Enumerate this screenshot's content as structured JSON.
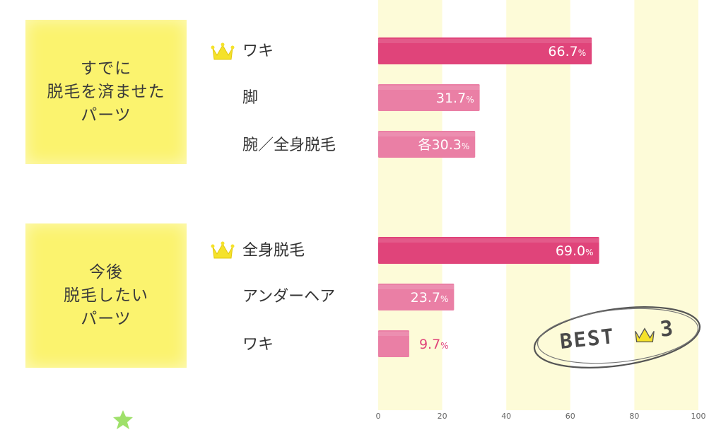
{
  "groups": [
    {
      "label": "すでに\n脱毛を済ませた\nパーツ"
    },
    {
      "label": "今後\n脱毛したい\nパーツ"
    }
  ],
  "badge": {
    "text": "BEST",
    "number": "3"
  },
  "colors": {
    "bar": "#e0447a",
    "bar_light": "#ea7fa5",
    "column_band": "#fdfbd8",
    "box": "#fbf36e",
    "crown": "#f5e22a",
    "label_outside": "#e0447a"
  },
  "icons": [
    "crown-icon",
    "star-icon"
  ],
  "chart_data": {
    "type": "bar",
    "orientation": "horizontal",
    "xlim": [
      0,
      100
    ],
    "x_ticks": [
      "0",
      "20",
      "40",
      "60",
      "80",
      "100"
    ],
    "groups": [
      {
        "label": "すでに脱毛を済ませたパーツ",
        "categories": [
          "ワキ",
          "脚",
          "腕／全身脱毛"
        ],
        "values": [
          66.7,
          31.7,
          30.3
        ],
        "value_labels": [
          "66.7",
          "31.7",
          "各30.3"
        ],
        "unit": "%",
        "crowned": [
          true,
          false,
          false
        ]
      },
      {
        "label": "今後脱毛したいパーツ",
        "categories": [
          "全身脱毛",
          "アンダーヘア",
          "ワキ"
        ],
        "values": [
          69.0,
          23.7,
          9.7
        ],
        "value_labels": [
          "69.0",
          "23.7",
          "9.7"
        ],
        "unit": "%",
        "crowned": [
          true,
          false,
          false
        ]
      }
    ]
  }
}
